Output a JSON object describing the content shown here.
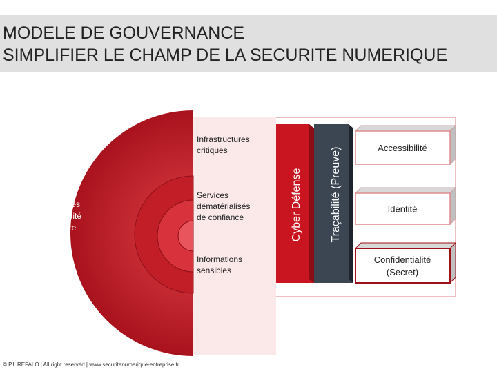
{
  "header": {
    "title_lines": [
      "MODELE DE GOUVERNANCE",
      "SIMPLIFIER LE CHAMP DE LA SECURITE NUMERIQUE"
    ]
  },
  "threats": [
    "Cyber-attaques",
    "Cybercriminalité",
    "Cyber-guerre"
  ],
  "layers": [
    [
      "Infrastructures",
      "critiques"
    ],
    [
      "Services",
      "dématérialisés",
      "de confiance"
    ],
    [
      "Informations",
      "sensibles"
    ]
  ],
  "columns": [
    "Cyber Défense",
    "Traçabilité (Preuve)"
  ],
  "boxes": [
    [
      "Accessibilité"
    ],
    [
      "Identité"
    ],
    [
      "Confidentialité",
      "(Secret)"
    ]
  ],
  "footer": "© P.L REFALO | All right reserved | www.securitenumerique-entreprise.fr"
}
